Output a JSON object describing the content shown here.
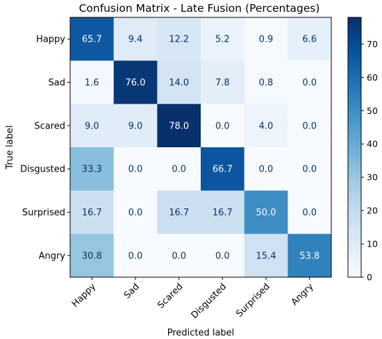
{
  "chart_data": {
    "type": "heatmap",
    "title": "Confusion Matrix - Late Fusion (Percentages)",
    "xlabel": "Predicted label",
    "ylabel": "True label",
    "x_categories": [
      "Happy",
      "Sad",
      "Scared",
      "Disgusted",
      "Surprised",
      "Angry"
    ],
    "y_categories": [
      "Happy",
      "Sad",
      "Scared",
      "Disgusted",
      "Surprised",
      "Angry"
    ],
    "values": [
      [
        65.7,
        9.4,
        12.2,
        5.2,
        0.9,
        6.6
      ],
      [
        1.6,
        76.0,
        14.0,
        7.8,
        0.8,
        0.0
      ],
      [
        9.0,
        9.0,
        78.0,
        0.0,
        4.0,
        0.0
      ],
      [
        33.3,
        0.0,
        0.0,
        66.7,
        0.0,
        0.0
      ],
      [
        16.7,
        0.0,
        16.7,
        16.7,
        50.0,
        0.0
      ],
      [
        30.8,
        0.0,
        0.0,
        0.0,
        15.4,
        53.8
      ]
    ],
    "colormap": "Blues",
    "value_range": [
      0,
      78.0
    ],
    "colorbar_ticks": [
      0,
      10,
      20,
      30,
      40,
      50,
      60,
      70
    ],
    "colors": {
      "text_on_light": "#08306b",
      "text_on_dark": "#ffffff",
      "axis": "#000000"
    }
  }
}
